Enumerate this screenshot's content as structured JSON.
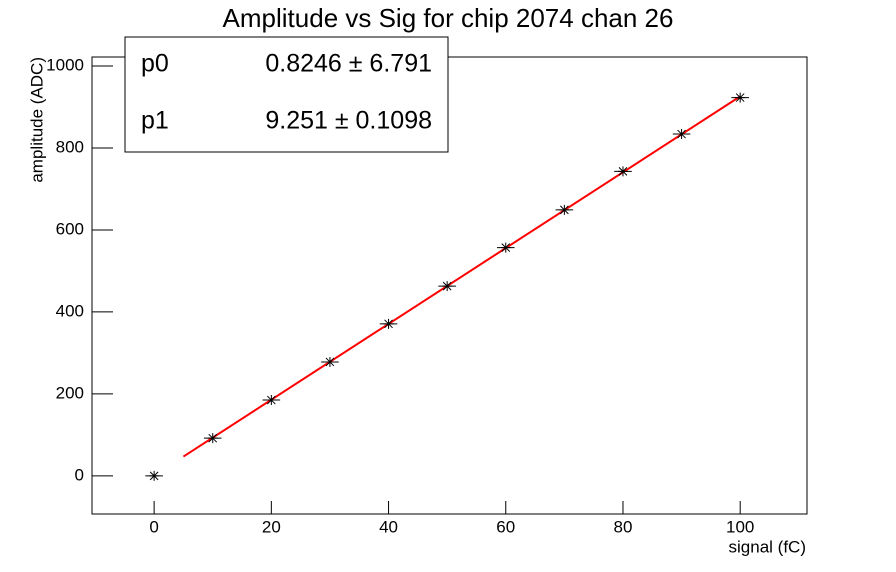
{
  "chart_data": {
    "type": "scatter",
    "title": "Amplitude vs Sig for chip 2074 chan 26",
    "x_label": "signal (fC)",
    "y_label": "amplitude (ADC)",
    "x": [
      0,
      10,
      20,
      30,
      40,
      50,
      60,
      70,
      80,
      90,
      100
    ],
    "values": [
      0,
      92,
      185,
      278,
      371,
      463,
      557,
      649,
      743,
      834,
      923
    ],
    "xerr": 1.5,
    "color": "#000000",
    "fit": {
      "color": "#ff0000",
      "x": [
        5,
        100
      ],
      "values": [
        47.1,
        925.9
      ]
    },
    "xlim": [
      -10.6,
      111.4
    ],
    "xticks": [
      0,
      20,
      40,
      60,
      80,
      100
    ],
    "ylim": [
      -93,
      1022
    ],
    "yticks": [
      0,
      200,
      400,
      600,
      800,
      1000
    ],
    "stats": [
      {
        "name": "p0",
        "value": "0.8246 ± 6.791"
      },
      {
        "name": "p1",
        "value": "9.251 ± 0.1098"
      }
    ]
  }
}
